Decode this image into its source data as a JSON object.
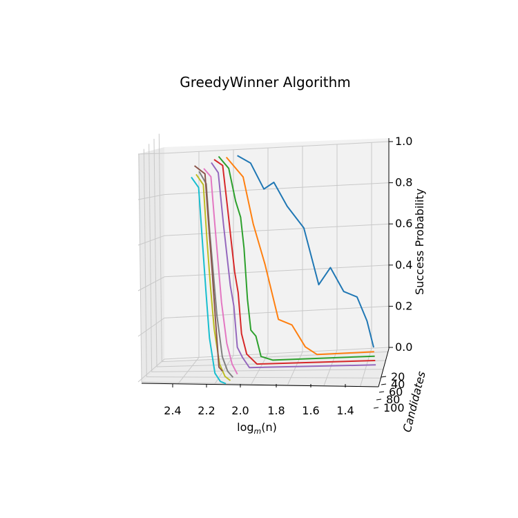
{
  "chart_data": {
    "type": "line",
    "projection": "3d",
    "title": "GreedyWinner Algorithm",
    "xlabel_prefix": "log",
    "xlabel_sub": "m",
    "xlabel_suffix": "(n)",
    "ylabel": "Candidates",
    "zlabel": "Success Probability",
    "x_ticks": [
      "2.4",
      "2.2",
      "2.0",
      "1.8",
      "1.6",
      "1.4"
    ],
    "y_ticks": [
      "20",
      "40",
      "60",
      "80",
      "100"
    ],
    "z_ticks": [
      "0.0",
      "0.2",
      "0.4",
      "0.6",
      "0.8",
      "1.0"
    ],
    "xlim": [
      1.3,
      2.6
    ],
    "ylim": [
      10,
      100
    ],
    "zlim": [
      0,
      1
    ],
    "grid": true,
    "series": [
      {
        "candidates": 10,
        "color": "#1f77b4",
        "x": [
          2.12,
          2.04,
          1.96,
          1.9,
          1.82,
          1.72,
          1.63,
          1.56,
          1.48,
          1.4,
          1.34,
          1.3
        ],
        "y": [
          0.97,
          0.93,
          0.8,
          0.83,
          0.71,
          0.6,
          0.32,
          0.4,
          0.28,
          0.25,
          0.13,
          0.0
        ]
      },
      {
        "candidates": 20,
        "color": "#ff7f0e",
        "x": [
          2.18,
          2.08,
          2.02,
          1.95,
          1.87,
          1.79,
          1.71,
          1.64,
          1.56,
          1.3
        ],
        "y": [
          0.98,
          0.88,
          0.65,
          0.45,
          0.18,
          0.15,
          0.04,
          0.0,
          0.0,
          0.0
        ]
      },
      {
        "candidates": 30,
        "color": "#2ca02c",
        "x": [
          2.22,
          2.16,
          2.12,
          2.09,
          2.07,
          2.05,
          2.03,
          2.0,
          1.97,
          1.9,
          1.3
        ],
        "y": [
          1.0,
          0.94,
          0.78,
          0.7,
          0.55,
          0.3,
          0.15,
          0.12,
          0.02,
          0.0,
          0.0
        ]
      },
      {
        "candidates": 40,
        "color": "#d62728",
        "x": [
          2.24,
          2.19,
          2.16,
          2.14,
          2.12,
          2.1,
          2.08,
          2.05,
          1.99,
          1.3
        ],
        "y": [
          1.0,
          0.97,
          0.75,
          0.6,
          0.45,
          0.35,
          0.15,
          0.05,
          0.0,
          0.0
        ]
      },
      {
        "candidates": 50,
        "color": "#9467bd",
        "x": [
          2.25,
          2.21,
          2.18,
          2.16,
          2.14,
          2.12,
          2.1,
          2.07,
          2.03,
          1.3
        ],
        "y": [
          1.0,
          0.95,
          0.7,
          0.55,
          0.4,
          0.3,
          0.1,
          0.05,
          0.0,
          0.0
        ]
      },
      {
        "candidates": 60,
        "color": "#8c564b",
        "x": [
          2.34,
          2.28,
          2.26,
          2.24,
          2.22,
          2.2,
          2.18
        ],
        "y": [
          1.0,
          0.96,
          0.72,
          0.5,
          0.25,
          0.02,
          0.0
        ]
      },
      {
        "candidates": 70,
        "color": "#e377c2",
        "x": [
          2.28,
          2.24,
          2.22,
          2.2,
          2.18,
          2.15,
          2.12,
          2.09
        ],
        "y": [
          1.0,
          0.96,
          0.75,
          0.55,
          0.35,
          0.15,
          0.05,
          0.0
        ]
      },
      {
        "candidates": 80,
        "color": "#7f7f7f",
        "x": [
          2.3,
          2.26,
          2.24,
          2.22,
          2.2,
          2.17,
          2.14,
          2.11
        ],
        "y": [
          1.0,
          0.94,
          0.7,
          0.5,
          0.3,
          0.1,
          0.03,
          0.0
        ]
      },
      {
        "candidates": 90,
        "color": "#bcbd22",
        "x": [
          2.31,
          2.27,
          2.25,
          2.23,
          2.21,
          2.18,
          2.15,
          2.12
        ],
        "y": [
          1.0,
          0.95,
          0.68,
          0.45,
          0.25,
          0.08,
          0.02,
          0.0
        ]
      },
      {
        "candidates": 100,
        "color": "#17becf",
        "x": [
          2.33,
          2.29,
          2.27,
          2.25,
          2.23,
          2.2,
          2.17,
          2.14
        ],
        "y": [
          1.0,
          0.95,
          0.7,
          0.45,
          0.22,
          0.05,
          0.01,
          0.0
        ]
      }
    ]
  }
}
